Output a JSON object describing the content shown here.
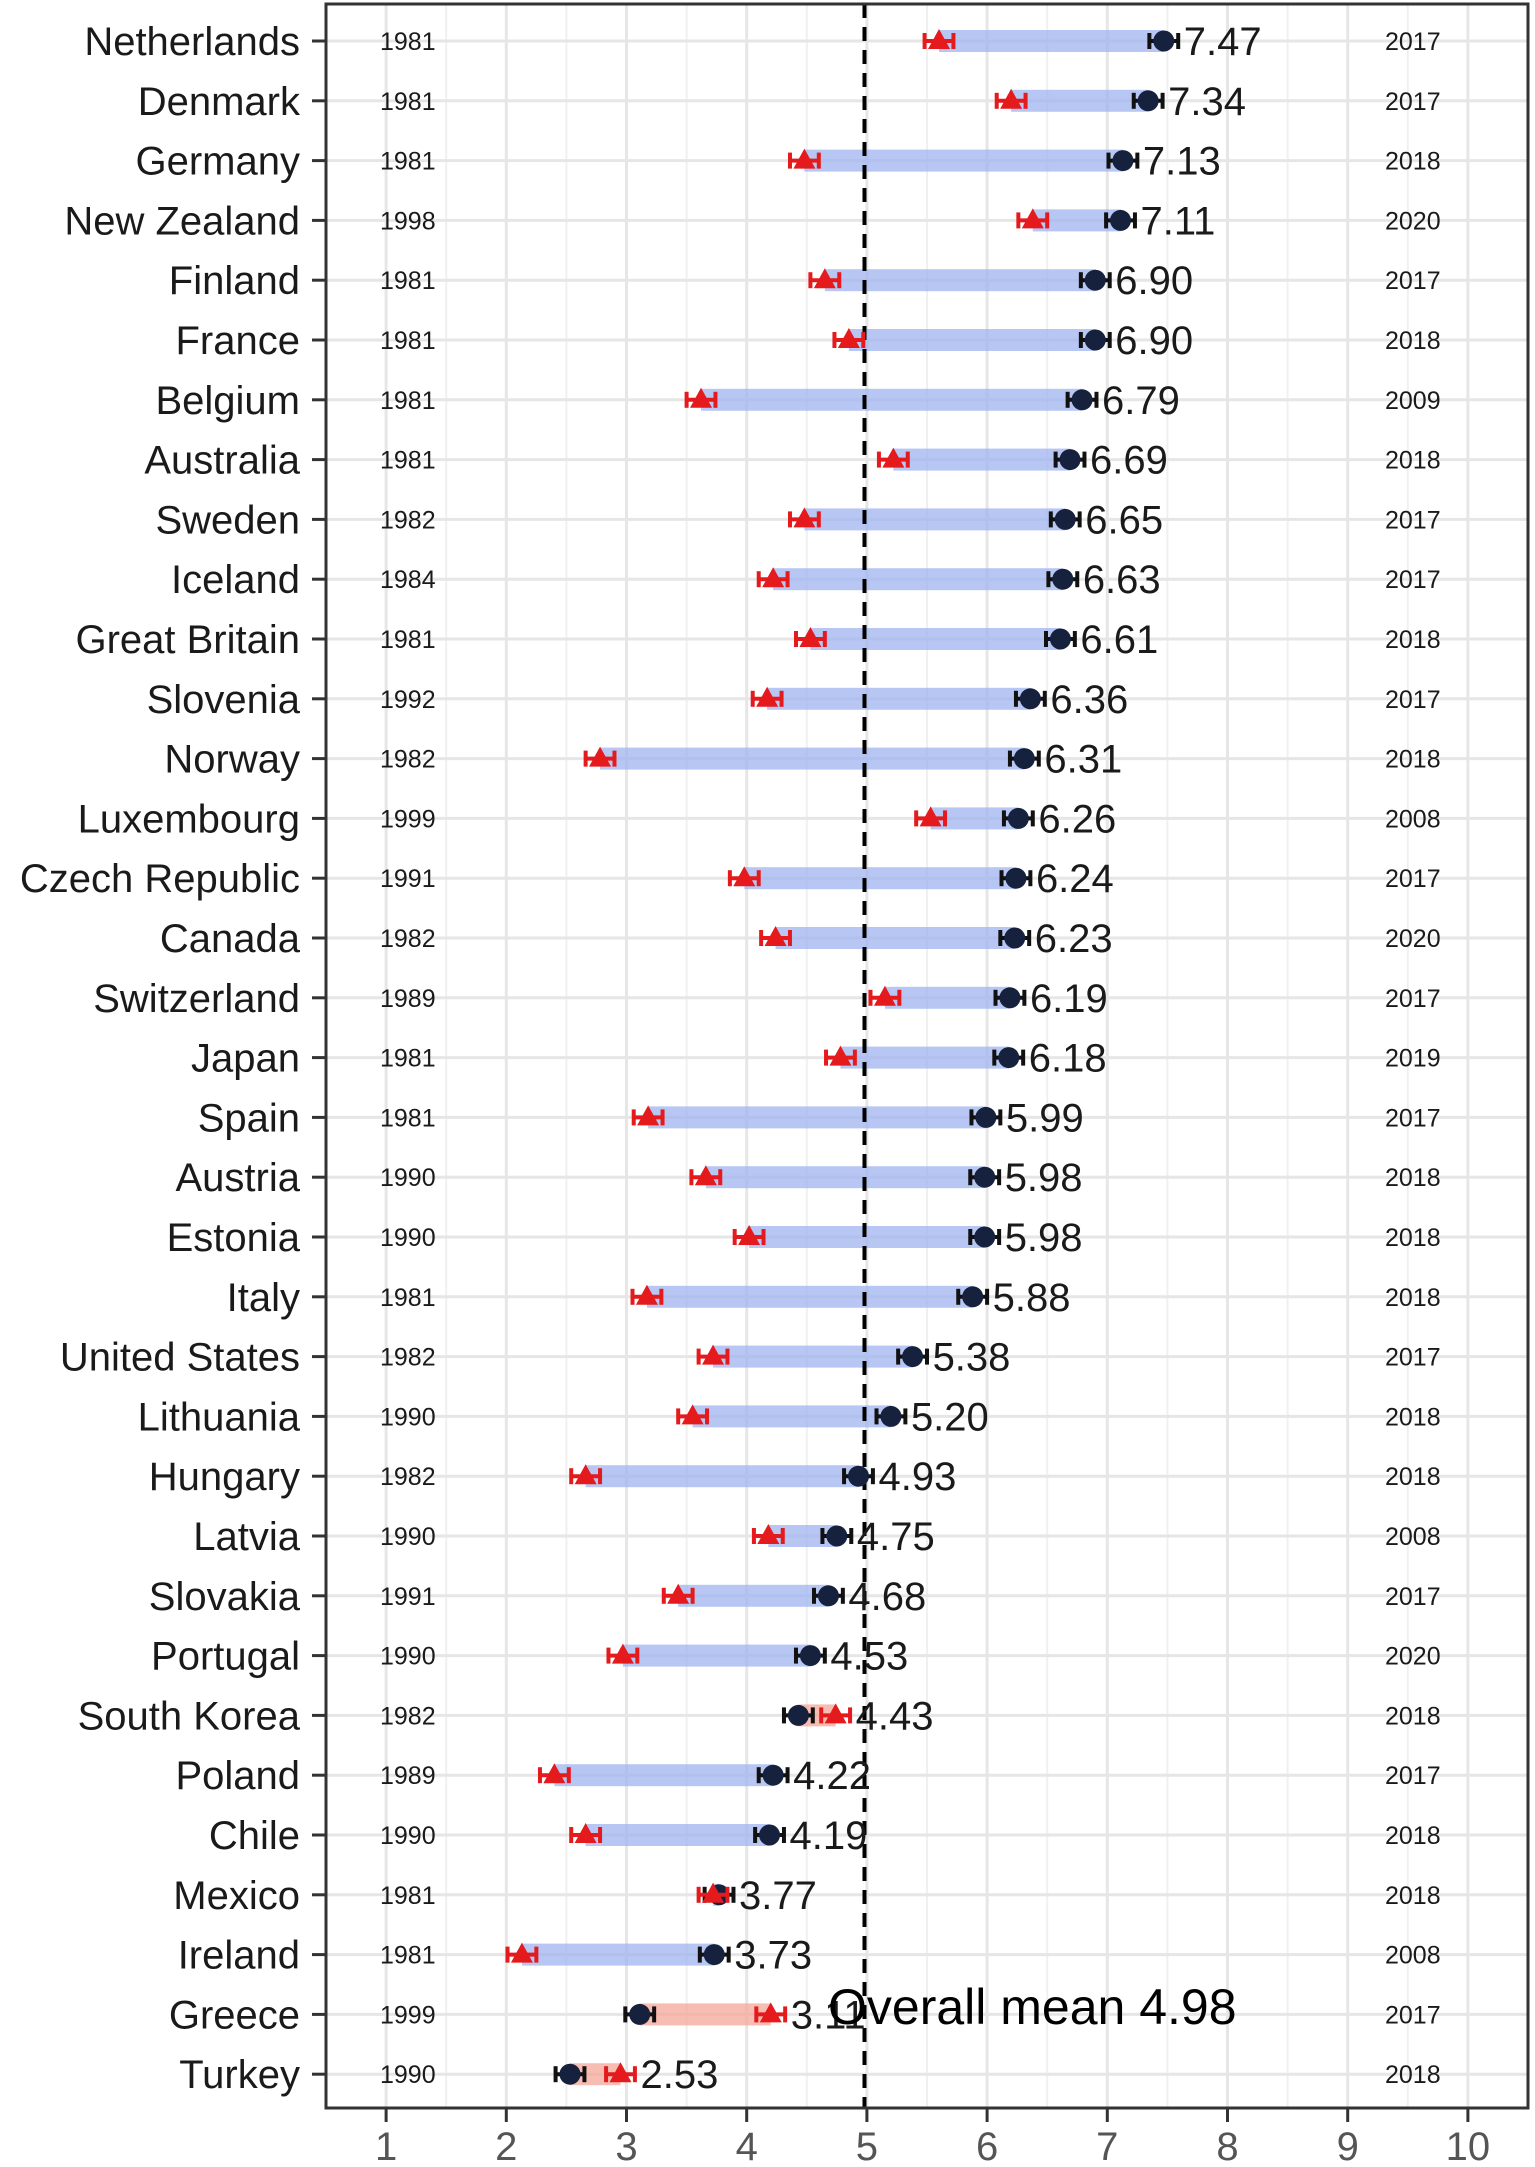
{
  "chart_data": {
    "type": "dumbbell",
    "xlim": [
      0.5,
      10.5
    ],
    "x_ticks": [
      1,
      2,
      3,
      4,
      5,
      6,
      7,
      8,
      9,
      10
    ],
    "reference_line": {
      "value": 4.98,
      "label": "Overall mean 4.98"
    },
    "colors": {
      "start_marker": "#e41a1c",
      "end_marker": "#16213e",
      "increase_band": "#9fb3ef",
      "decrease_band": "#f4a79a",
      "grid": "#e6e6e6",
      "axis": "#333333"
    },
    "rows": [
      {
        "country": "Netherlands",
        "start_year": "1981",
        "end_year": "2017",
        "start": 5.6,
        "end": 7.47,
        "label": "7.47"
      },
      {
        "country": "Denmark",
        "start_year": "1981",
        "end_year": "2017",
        "start": 6.2,
        "end": 7.34,
        "label": "7.34"
      },
      {
        "country": "Germany",
        "start_year": "1981",
        "end_year": "2018",
        "start": 4.48,
        "end": 7.13,
        "label": "7.13"
      },
      {
        "country": "New Zealand",
        "start_year": "1998",
        "end_year": "2020",
        "start": 6.38,
        "end": 7.11,
        "label": "7.11"
      },
      {
        "country": "Finland",
        "start_year": "1981",
        "end_year": "2017",
        "start": 4.65,
        "end": 6.9,
        "label": "6.90"
      },
      {
        "country": "France",
        "start_year": "1981",
        "end_year": "2018",
        "start": 4.85,
        "end": 6.9,
        "label": "6.90"
      },
      {
        "country": "Belgium",
        "start_year": "1981",
        "end_year": "2009",
        "start": 3.62,
        "end": 6.79,
        "label": "6.79"
      },
      {
        "country": "Australia",
        "start_year": "1981",
        "end_year": "2018",
        "start": 5.22,
        "end": 6.69,
        "label": "6.69"
      },
      {
        "country": "Sweden",
        "start_year": "1982",
        "end_year": "2017",
        "start": 4.48,
        "end": 6.65,
        "label": "6.65"
      },
      {
        "country": "Iceland",
        "start_year": "1984",
        "end_year": "2017",
        "start": 4.22,
        "end": 6.63,
        "label": "6.63"
      },
      {
        "country": "Great Britain",
        "start_year": "1981",
        "end_year": "2018",
        "start": 4.53,
        "end": 6.61,
        "label": "6.61"
      },
      {
        "country": "Slovenia",
        "start_year": "1992",
        "end_year": "2017",
        "start": 4.17,
        "end": 6.36,
        "label": "6.36"
      },
      {
        "country": "Norway",
        "start_year": "1982",
        "end_year": "2018",
        "start": 2.78,
        "end": 6.31,
        "label": "6.31"
      },
      {
        "country": "Luxembourg",
        "start_year": "1999",
        "end_year": "2008",
        "start": 5.53,
        "end": 6.26,
        "label": "6.26"
      },
      {
        "country": "Czech Republic",
        "start_year": "1991",
        "end_year": "2017",
        "start": 3.98,
        "end": 6.24,
        "label": "6.24"
      },
      {
        "country": "Canada",
        "start_year": "1982",
        "end_year": "2020",
        "start": 4.24,
        "end": 6.23,
        "label": "6.23"
      },
      {
        "country": "Switzerland",
        "start_year": "1989",
        "end_year": "2017",
        "start": 5.15,
        "end": 6.19,
        "label": "6.19"
      },
      {
        "country": "Japan",
        "start_year": "1981",
        "end_year": "2019",
        "start": 4.78,
        "end": 6.18,
        "label": "6.18"
      },
      {
        "country": "Spain",
        "start_year": "1981",
        "end_year": "2017",
        "start": 3.18,
        "end": 5.99,
        "label": "5.99"
      },
      {
        "country": "Austria",
        "start_year": "1990",
        "end_year": "2018",
        "start": 3.66,
        "end": 5.98,
        "label": "5.98"
      },
      {
        "country": "Estonia",
        "start_year": "1990",
        "end_year": "2018",
        "start": 4.02,
        "end": 5.98,
        "label": "5.98"
      },
      {
        "country": "Italy",
        "start_year": "1981",
        "end_year": "2018",
        "start": 3.17,
        "end": 5.88,
        "label": "5.88"
      },
      {
        "country": "United States",
        "start_year": "1982",
        "end_year": "2017",
        "start": 3.72,
        "end": 5.38,
        "label": "5.38"
      },
      {
        "country": "Lithuania",
        "start_year": "1990",
        "end_year": "2018",
        "start": 3.55,
        "end": 5.2,
        "label": "5.20"
      },
      {
        "country": "Hungary",
        "start_year": "1982",
        "end_year": "2018",
        "start": 2.66,
        "end": 4.93,
        "label": "4.93"
      },
      {
        "country": "Latvia",
        "start_year": "1990",
        "end_year": "2008",
        "start": 4.18,
        "end": 4.75,
        "label": "4.75"
      },
      {
        "country": "Slovakia",
        "start_year": "1991",
        "end_year": "2017",
        "start": 3.43,
        "end": 4.68,
        "label": "4.68"
      },
      {
        "country": "Portugal",
        "start_year": "1990",
        "end_year": "2020",
        "start": 2.97,
        "end": 4.53,
        "label": "4.53"
      },
      {
        "country": "South Korea",
        "start_year": "1982",
        "end_year": "2018",
        "start": 4.74,
        "end": 4.43,
        "label": "4.43"
      },
      {
        "country": "Poland",
        "start_year": "1989",
        "end_year": "2017",
        "start": 2.4,
        "end": 4.22,
        "label": "4.22"
      },
      {
        "country": "Chile",
        "start_year": "1990",
        "end_year": "2018",
        "start": 2.66,
        "end": 4.19,
        "label": "4.19"
      },
      {
        "country": "Mexico",
        "start_year": "1981",
        "end_year": "2018",
        "start": 3.72,
        "end": 3.77,
        "label": "3.77"
      },
      {
        "country": "Ireland",
        "start_year": "1981",
        "end_year": "2008",
        "start": 2.13,
        "end": 3.73,
        "label": "3.73"
      },
      {
        "country": "Greece",
        "start_year": "1999",
        "end_year": "2017",
        "start": 4.2,
        "end": 3.11,
        "label": "3.11"
      },
      {
        "country": "Turkey",
        "start_year": "1990",
        "end_year": "2018",
        "start": 2.95,
        "end": 2.53,
        "label": "2.53"
      }
    ]
  }
}
